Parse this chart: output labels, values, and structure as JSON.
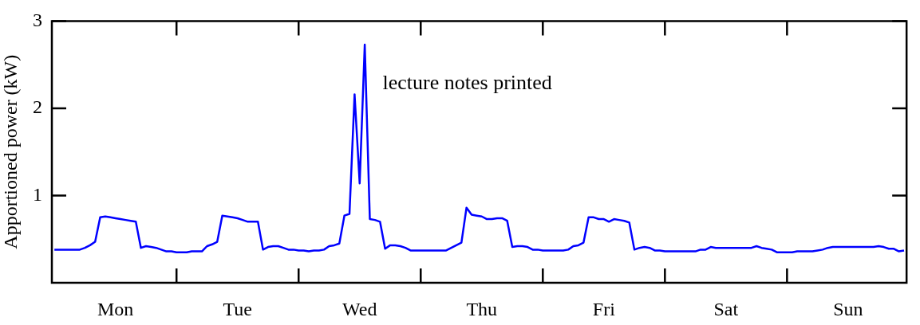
{
  "chart_data": {
    "type": "line",
    "ylabel": "Apportioned power (kW)",
    "annotations": [
      "lecture notes printed"
    ],
    "categories": [
      null,
      null,
      null,
      null,
      null,
      null,
      null,
      null,
      null,
      null,
      null,
      null,
      "Mon",
      null,
      null,
      null,
      null,
      null,
      null,
      null,
      null,
      null,
      null,
      null,
      null,
      null,
      null,
      null,
      null,
      null,
      null,
      null,
      null,
      null,
      null,
      null,
      "Tue",
      null,
      null,
      null,
      null,
      null,
      null,
      null,
      null,
      null,
      null,
      null,
      null,
      null,
      null,
      null,
      null,
      null,
      null,
      null,
      null,
      null,
      null,
      null,
      "Wed",
      null,
      null,
      null,
      null,
      null,
      null,
      null,
      null,
      null,
      null,
      null,
      null,
      null,
      null,
      null,
      null,
      null,
      null,
      null,
      null,
      null,
      null,
      null,
      "Thu",
      null,
      null,
      null,
      null,
      null,
      null,
      null,
      null,
      null,
      null,
      null,
      null,
      null,
      null,
      null,
      null,
      null,
      null,
      null,
      null,
      null,
      null,
      null,
      "Fri",
      null,
      null,
      null,
      null,
      null,
      null,
      null,
      null,
      null,
      null,
      null,
      null,
      null,
      null,
      null,
      null,
      null,
      null,
      null,
      null,
      null,
      null,
      null,
      "Sat",
      null,
      null,
      null,
      null,
      null,
      null,
      null,
      null,
      null,
      null,
      null,
      null,
      null,
      null,
      null,
      null,
      null,
      null,
      null,
      null,
      null,
      null,
      null,
      "Sun",
      null,
      null,
      null,
      null,
      null,
      null,
      null,
      null,
      null,
      null,
      null
    ],
    "ylim": [
      0,
      3
    ],
    "yticks": [
      1,
      2,
      3
    ],
    "grid": false,
    "legend": false,
    "marker": "none",
    "line_style": "solid",
    "series": [
      {
        "color": "#0000ff",
        "values": [
          0.38,
          0.38,
          0.38,
          0.38,
          0.38,
          0.38,
          0.4,
          0.43,
          0.47,
          0.75,
          0.76,
          0.75,
          0.74,
          0.73,
          0.72,
          0.71,
          0.7,
          0.4,
          0.42,
          0.41,
          0.4,
          0.38,
          0.36,
          0.36,
          0.35,
          0.35,
          0.35,
          0.36,
          0.36,
          0.36,
          0.42,
          0.44,
          0.47,
          0.77,
          0.76,
          0.75,
          0.74,
          0.72,
          0.7,
          0.7,
          0.7,
          0.38,
          0.41,
          0.42,
          0.42,
          0.4,
          0.38,
          0.38,
          0.37,
          0.37,
          0.36,
          0.37,
          0.37,
          0.38,
          0.42,
          0.43,
          0.45,
          0.77,
          0.79,
          2.16,
          1.14,
          2.73,
          0.73,
          0.72,
          0.7,
          0.39,
          0.43,
          0.43,
          0.42,
          0.4,
          0.37,
          0.37,
          0.37,
          0.37,
          0.37,
          0.37,
          0.37,
          0.37,
          0.4,
          0.43,
          0.46,
          0.86,
          0.78,
          0.77,
          0.76,
          0.73,
          0.73,
          0.74,
          0.74,
          0.71,
          0.41,
          0.42,
          0.42,
          0.41,
          0.38,
          0.38,
          0.37,
          0.37,
          0.37,
          0.37,
          0.37,
          0.38,
          0.42,
          0.43,
          0.46,
          0.75,
          0.75,
          0.73,
          0.73,
          0.7,
          0.73,
          0.72,
          0.71,
          0.69,
          0.38,
          0.4,
          0.41,
          0.4,
          0.37,
          0.37,
          0.36,
          0.36,
          0.36,
          0.36,
          0.36,
          0.36,
          0.36,
          0.38,
          0.38,
          0.41,
          0.4,
          0.4,
          0.4,
          0.4,
          0.4,
          0.4,
          0.4,
          0.4,
          0.42,
          0.4,
          0.39,
          0.38,
          0.35,
          0.35,
          0.35,
          0.35,
          0.36,
          0.36,
          0.36,
          0.36,
          0.37,
          0.38,
          0.4,
          0.41,
          0.41,
          0.41,
          0.41,
          0.41,
          0.41,
          0.41,
          0.41,
          0.41,
          0.42,
          0.41,
          0.39,
          0.39,
          0.36,
          0.37
        ]
      }
    ]
  }
}
